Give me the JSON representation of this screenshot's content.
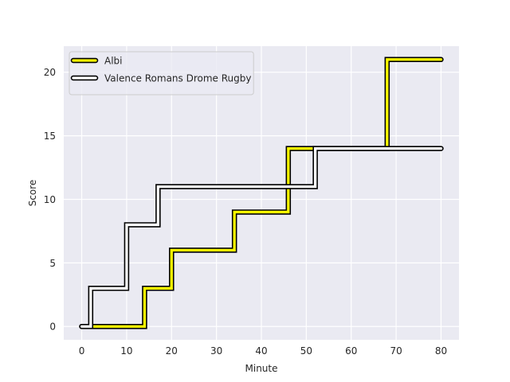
{
  "chart_data": {
    "type": "line",
    "drawstyle": "steps-post",
    "xlabel": "Minute",
    "ylabel": "Score",
    "xlim": [
      -4,
      84
    ],
    "ylim": [
      -1.05,
      22.05
    ],
    "xticks": [
      0,
      10,
      20,
      30,
      40,
      50,
      60,
      70,
      80
    ],
    "yticks": [
      0,
      5,
      10,
      15,
      20
    ],
    "grid": true,
    "background": "#eaeaf2",
    "legend_position": "top-left",
    "series": [
      {
        "name": "Albi",
        "color": "#ffff00",
        "outline": "#000000",
        "points": [
          [
            0,
            0
          ],
          [
            14,
            0
          ],
          [
            14,
            3
          ],
          [
            20,
            3
          ],
          [
            20,
            6
          ],
          [
            34,
            6
          ],
          [
            34,
            9
          ],
          [
            46,
            9
          ],
          [
            46,
            14
          ],
          [
            68,
            14
          ],
          [
            68,
            21
          ],
          [
            80,
            21
          ]
        ]
      },
      {
        "name": "Valence Romans Drome Rugby",
        "color": "#ffffff",
        "outline": "#000000",
        "points": [
          [
            0,
            0
          ],
          [
            2,
            0
          ],
          [
            2,
            3
          ],
          [
            10,
            3
          ],
          [
            10,
            8
          ],
          [
            17,
            8
          ],
          [
            17,
            11
          ],
          [
            52,
            11
          ],
          [
            52,
            14
          ],
          [
            80,
            14
          ]
        ]
      }
    ]
  }
}
